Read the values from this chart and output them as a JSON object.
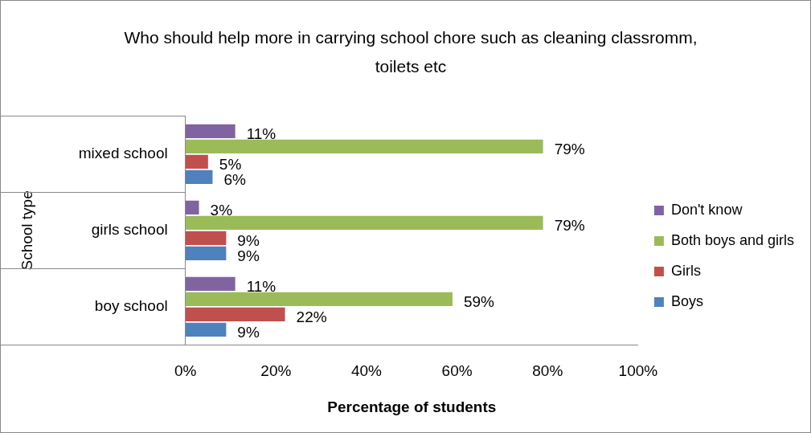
{
  "chart_data": {
    "type": "bar",
    "orientation": "horizontal",
    "title": "Who should  help more in carrying school chore such as cleaning classromm, toilets etc",
    "xlabel": "Percentage of students",
    "ylabel": "School type",
    "categories": [
      "mixed school",
      "girls school",
      "boy school"
    ],
    "series": [
      {
        "name": "Don't know",
        "color": "#8064a2",
        "values": [
          11,
          3,
          11
        ],
        "value_labels": [
          "11%",
          "3%",
          "11%"
        ]
      },
      {
        "name": "Both boys and girls",
        "color": "#9bbb59",
        "values": [
          79,
          79,
          59
        ],
        "value_labels": [
          "79%",
          "79%",
          "59%"
        ]
      },
      {
        "name": "Girls",
        "color": "#c0504d",
        "values": [
          5,
          9,
          22
        ],
        "value_labels": [
          "5%",
          "9%",
          "22%"
        ]
      },
      {
        "name": "Boys",
        "color": "#4f81bd",
        "values": [
          6,
          9,
          9
        ],
        "value_labels": [
          "6%",
          "9%",
          "9%"
        ]
      }
    ],
    "xlim": [
      0,
      100
    ],
    "xticks": [
      {
        "value": 0,
        "label": "0%"
      },
      {
        "value": 20,
        "label": "20%"
      },
      {
        "value": 40,
        "label": "40%"
      },
      {
        "value": 60,
        "label": "60%"
      },
      {
        "value": 80,
        "label": "80%"
      },
      {
        "value": 100,
        "label": "100%"
      }
    ],
    "grid": false,
    "legend": "right"
  }
}
